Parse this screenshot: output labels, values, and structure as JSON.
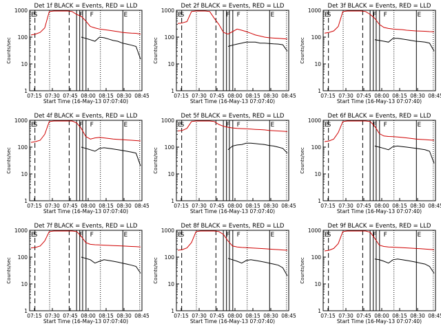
{
  "figure": {
    "colors": {
      "events": "#000000",
      "lld": "#d00000",
      "frame": "#000000"
    }
  },
  "chart_data": [
    {
      "type": "line",
      "title": "Det 1f BLACK = Events, RED = LLD",
      "xlabel": "Start Time (16-May-13 07:07:40)",
      "ylabel": "Counts/sec",
      "x_tick_labels": [
        "07:15",
        "07:30",
        "07:45",
        "08:00",
        "08:15",
        "08:30",
        "08:45"
      ],
      "y_tick_labels": [
        "1",
        "10",
        "100",
        "1000"
      ],
      "ylim": [
        1,
        1000
      ],
      "y_scale": "log",
      "marker_labels": [
        "E",
        "S",
        "F",
        "F",
        "E"
      ],
      "series": [
        {
          "values": [
            120,
            130,
            150,
            220,
            900,
            1000,
            1000,
            1000,
            1000,
            900,
            700,
            600,
            400,
            250,
            220,
            200,
            190,
            180,
            170,
            160,
            150,
            145,
            140,
            138,
            130
          ],
          "color": "#d00000"
        },
        {
          "values": [
            null,
            null,
            null,
            null,
            null,
            null,
            null,
            null,
            null,
            null,
            null,
            100,
            90,
            80,
            70,
            100,
            95,
            85,
            75,
            70,
            60,
            55,
            50,
            45,
            15
          ],
          "color": "#000000"
        }
      ]
    },
    {
      "type": "line",
      "title": "Det 2f BLACK = Events, RED = LLD",
      "xlabel": "Start Time (16-May-13 07:07:40)",
      "ylabel": "Counts/sec",
      "x_tick_labels": [
        "07:15",
        "07:30",
        "07:45",
        "08:00",
        "08:15",
        "08:30",
        "08:45"
      ],
      "y_tick_labels": [
        "1",
        "10",
        "100",
        "1000"
      ],
      "ylim": [
        1,
        1000
      ],
      "y_scale": "log",
      "marker_labels": [
        "E",
        "S",
        "F",
        "F",
        "E"
      ],
      "series": [
        {
          "values": [
            320,
            340,
            380,
            900,
            1000,
            1000,
            1000,
            900,
            500,
            300,
            150,
            130,
            160,
            200,
            180,
            160,
            140,
            120,
            110,
            100,
            95,
            92,
            90,
            88,
            85
          ],
          "color": "#d00000"
        },
        {
          "values": [
            null,
            null,
            null,
            null,
            null,
            null,
            null,
            null,
            null,
            null,
            null,
            45,
            50,
            55,
            60,
            65,
            65,
            65,
            60,
            60,
            58,
            56,
            55,
            52,
            30
          ],
          "color": "#000000"
        }
      ]
    },
    {
      "type": "line",
      "title": "Det 3f BLACK = Events, RED = LLD",
      "xlabel": "Start Time (16-May-13 07:07:40)",
      "ylabel": "Counts/sec",
      "x_tick_labels": [
        "07:15",
        "07:30",
        "07:45",
        "08:00",
        "08:15",
        "08:30",
        "08:45"
      ],
      "y_tick_labels": [
        "1",
        "10",
        "100",
        "1000"
      ],
      "ylim": [
        1,
        1000
      ],
      "y_scale": "log",
      "marker_labels": [
        "E",
        "S",
        "F",
        "F",
        "E"
      ],
      "series": [
        {
          "values": [
            140,
            150,
            170,
            250,
            900,
            1000,
            1000,
            1000,
            1000,
            900,
            700,
            500,
            300,
            230,
            210,
            200,
            195,
            190,
            180,
            175,
            170,
            168,
            165,
            160,
            158
          ],
          "color": "#d00000"
        },
        {
          "values": [
            null,
            null,
            null,
            null,
            null,
            null,
            null,
            null,
            null,
            null,
            null,
            80,
            75,
            70,
            65,
            90,
            90,
            85,
            80,
            75,
            70,
            68,
            65,
            60,
            30
          ],
          "color": "#000000"
        }
      ]
    },
    {
      "type": "line",
      "title": "Det 4f BLACK = Events, RED = LLD",
      "xlabel": "Start Time (16-May-13 07:07:40)",
      "ylabel": "Counts/sec",
      "x_tick_labels": [
        "07:15",
        "07:30",
        "07:45",
        "08:00",
        "08:15",
        "08:30",
        "08:45"
      ],
      "y_tick_labels": [
        "1",
        "10",
        "100",
        "1000"
      ],
      "ylim": [
        1,
        1000
      ],
      "y_scale": "log",
      "marker_labels": [
        "E",
        "S",
        "F",
        "F",
        "E"
      ],
      "series": [
        {
          "values": [
            150,
            160,
            180,
            300,
            900,
            1000,
            1000,
            1000,
            1000,
            1000,
            800,
            500,
            250,
            200,
            220,
            230,
            220,
            210,
            200,
            195,
            190,
            185,
            180,
            175,
            170
          ],
          "color": "#d00000"
        },
        {
          "values": [
            null,
            null,
            null,
            null,
            null,
            null,
            null,
            null,
            null,
            null,
            null,
            100,
            90,
            80,
            70,
            90,
            95,
            90,
            85,
            80,
            75,
            70,
            65,
            60,
            20
          ],
          "color": "#000000"
        }
      ]
    },
    {
      "type": "line",
      "title": "Det 5f BLACK = Events, RED = LLD",
      "xlabel": "Start Time (16-May-13 07:07:40)",
      "ylabel": "Counts/sec",
      "x_tick_labels": [
        "07:15",
        "07:30",
        "07:45",
        "08:00",
        "08:15",
        "08:30",
        "08:45"
      ],
      "y_tick_labels": [
        "1",
        "10",
        "100",
        "1000"
      ],
      "ylim": [
        1,
        1000
      ],
      "y_scale": "log",
      "marker_labels": [
        "E",
        "S",
        "F",
        "F",
        "E"
      ],
      "series": [
        {
          "values": [
            400,
            420,
            500,
            900,
            1000,
            1000,
            1000,
            1000,
            900,
            700,
            600,
            550,
            520,
            500,
            490,
            480,
            470,
            460,
            450,
            440,
            420,
            410,
            400,
            390,
            380
          ],
          "color": "#d00000"
        },
        {
          "values": [
            null,
            null,
            null,
            null,
            null,
            null,
            null,
            null,
            null,
            null,
            null,
            80,
            110,
            120,
            125,
            140,
            140,
            135,
            130,
            125,
            115,
            110,
            100,
            90,
            60
          ],
          "color": "#000000"
        }
      ]
    },
    {
      "type": "line",
      "title": "Det 6f BLACK = Events, RED = LLD",
      "xlabel": "Start Time (16-May-13 07:07:40)",
      "ylabel": "Counts/sec",
      "x_tick_labels": [
        "07:15",
        "07:30",
        "07:45",
        "08:00",
        "08:15",
        "08:30",
        "08:45"
      ],
      "y_tick_labels": [
        "1",
        "10",
        "100",
        "1000"
      ],
      "ylim": [
        1,
        1000
      ],
      "y_scale": "log",
      "marker_labels": [
        "E",
        "S",
        "F",
        "F",
        "E"
      ],
      "series": [
        {
          "values": [
            160,
            170,
            200,
            350,
            900,
            1000,
            1000,
            1000,
            1000,
            1000,
            900,
            600,
            320,
            260,
            250,
            245,
            240,
            230,
            220,
            210,
            200,
            195,
            190,
            185,
            180
          ],
          "color": "#d00000"
        },
        {
          "values": [
            null,
            null,
            null,
            null,
            null,
            null,
            null,
            null,
            null,
            null,
            null,
            110,
            100,
            90,
            80,
            105,
            110,
            105,
            100,
            95,
            90,
            85,
            80,
            70,
            25
          ],
          "color": "#000000"
        }
      ]
    },
    {
      "type": "line",
      "title": "Det 7f BLACK = Events, RED = LLD",
      "xlabel": "Start Time (16-May-13 07:07:40)",
      "ylabel": "Counts/sec",
      "x_tick_labels": [
        "07:15",
        "07:30",
        "07:45",
        "08:00",
        "08:15",
        "08:30",
        "08:45"
      ],
      "y_tick_labels": [
        "1",
        "10",
        "100",
        "1000"
      ],
      "ylim": [
        1,
        1000
      ],
      "y_scale": "log",
      "marker_labels": [
        "E",
        "S",
        "F",
        "F",
        "E"
      ],
      "series": [
        {
          "values": [
            220,
            230,
            260,
            400,
            900,
            1000,
            1000,
            1000,
            1000,
            1000,
            900,
            600,
            350,
            300,
            290,
            285,
            280,
            275,
            270,
            265,
            260,
            255,
            250,
            245,
            240
          ],
          "color": "#d00000"
        },
        {
          "values": [
            null,
            null,
            null,
            null,
            null,
            null,
            null,
            null,
            null,
            null,
            null,
            100,
            90,
            80,
            60,
            70,
            80,
            75,
            70,
            65,
            60,
            55,
            50,
            45,
            25
          ],
          "color": "#000000"
        }
      ]
    },
    {
      "type": "line",
      "title": "Det 8f BLACK = Events, RED = LLD",
      "xlabel": "Start Time (16-May-13 07:07:40)",
      "ylabel": "Counts/sec",
      "x_tick_labels": [
        "07:15",
        "07:30",
        "07:45",
        "08:00",
        "08:15",
        "08:30",
        "08:45"
      ],
      "y_tick_labels": [
        "1",
        "10",
        "100",
        "1000"
      ],
      "ylim": [
        1,
        1000
      ],
      "y_scale": "log",
      "marker_labels": [
        "E",
        "S",
        "F",
        "F",
        "E"
      ],
      "series": [
        {
          "values": [
            180,
            190,
            220,
            350,
            900,
            1000,
            1000,
            1000,
            1000,
            900,
            700,
            400,
            260,
            240,
            230,
            225,
            220,
            215,
            210,
            205,
            200,
            195,
            190,
            185,
            180
          ],
          "color": "#d00000"
        },
        {
          "values": [
            null,
            null,
            null,
            null,
            null,
            null,
            null,
            null,
            null,
            null,
            null,
            90,
            80,
            70,
            60,
            75,
            80,
            75,
            70,
            65,
            60,
            55,
            50,
            40,
            20
          ],
          "color": "#000000"
        }
      ]
    },
    {
      "type": "line",
      "title": "Det 9f BLACK = Events, RED = LLD",
      "xlabel": "Start Time (16-May-13 07:07:40)",
      "ylabel": "Counts/sec",
      "x_tick_labels": [
        "07:15",
        "07:30",
        "07:45",
        "08:00",
        "08:15",
        "08:30",
        "08:45"
      ],
      "y_tick_labels": [
        "1",
        "10",
        "100",
        "1000"
      ],
      "ylim": [
        1,
        1000
      ],
      "y_scale": "log",
      "marker_labels": [
        "E",
        "S",
        "F",
        "F",
        "E"
      ],
      "series": [
        {
          "values": [
            170,
            180,
            210,
            320,
            900,
            1000,
            1000,
            1000,
            1000,
            1000,
            850,
            500,
            280,
            250,
            240,
            235,
            230,
            225,
            220,
            215,
            210,
            205,
            200,
            195,
            190
          ],
          "color": "#d00000"
        },
        {
          "values": [
            null,
            null,
            null,
            null,
            null,
            null,
            null,
            null,
            null,
            null,
            null,
            85,
            80,
            70,
            60,
            80,
            85,
            80,
            75,
            70,
            65,
            60,
            55,
            45,
            25
          ],
          "color": "#000000"
        }
      ]
    }
  ]
}
